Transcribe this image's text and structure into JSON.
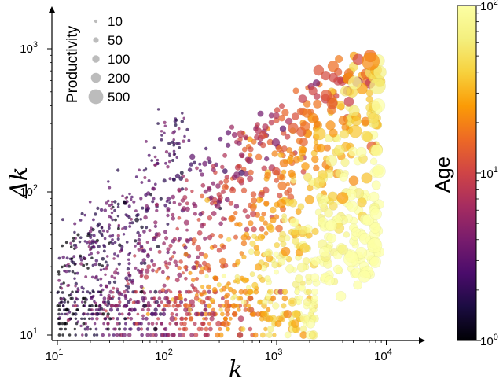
{
  "chart_data": {
    "type": "scatter",
    "xlabel": "k",
    "ylabel": "Δk",
    "xscale": "log",
    "yscale": "log",
    "xlim": [
      9,
      20000
    ],
    "ylim": [
      9,
      1300
    ],
    "x_ticks": [
      {
        "value": 10,
        "base": "10",
        "exp": "1"
      },
      {
        "value": 100,
        "base": "10",
        "exp": "2"
      },
      {
        "value": 1000,
        "base": "10",
        "exp": "3"
      },
      {
        "value": 10000,
        "base": "10",
        "exp": "4"
      }
    ],
    "y_ticks": [
      {
        "value": 10,
        "base": "10",
        "exp": "1"
      },
      {
        "value": 100,
        "base": "10",
        "exp": "2"
      },
      {
        "value": 1000,
        "base": "10",
        "exp": "3"
      }
    ],
    "size_legend": {
      "title": "Productivity",
      "placement": "top-left",
      "entries": [
        {
          "label": "10",
          "value": 10
        },
        {
          "label": "50",
          "value": 50
        },
        {
          "label": "100",
          "value": 100
        },
        {
          "label": "200",
          "value": 200
        },
        {
          "label": "500",
          "value": 500
        }
      ]
    },
    "colorbar": {
      "label": "Age",
      "scale": "log",
      "range": [
        1,
        100
      ],
      "colormap": "inferno",
      "ticks": [
        {
          "value": 1,
          "base": "10",
          "exp": "0"
        },
        {
          "value": 10,
          "base": "10",
          "exp": "1"
        },
        {
          "value": 100,
          "base": "10",
          "exp": "2"
        }
      ]
    },
    "n_points_approx": 1500,
    "points": [
      {
        "x": 10,
        "y": 10,
        "age": 1.5,
        "productivity": 8
      },
      {
        "x": 20,
        "y": 12,
        "age": 3,
        "productivity": 15
      },
      {
        "x": 50,
        "y": 15,
        "age": 6,
        "productivity": 25
      },
      {
        "x": 100,
        "y": 12,
        "age": 8,
        "productivity": 30
      },
      {
        "x": 300,
        "y": 15,
        "age": 12,
        "productivity": 40
      },
      {
        "x": 1000,
        "y": 20,
        "age": 25,
        "productivity": 80
      },
      {
        "x": 2000,
        "y": 40,
        "age": 40,
        "productivity": 150
      },
      {
        "x": 30,
        "y": 100,
        "age": 1.5,
        "productivity": 12
      },
      {
        "x": 150,
        "y": 300,
        "age": 3,
        "productivity": 40
      },
      {
        "x": 500,
        "y": 300,
        "age": 8,
        "productivity": 120
      },
      {
        "x": 1500,
        "y": 400,
        "age": 12,
        "productivity": 300
      },
      {
        "x": 4000,
        "y": 700,
        "age": 30,
        "productivity": 500
      },
      {
        "x": 5000,
        "y": 500,
        "age": 35,
        "productivity": 400
      },
      {
        "x": 9000,
        "y": 400,
        "age": 80,
        "productivity": 250
      },
      {
        "x": 6000,
        "y": 200,
        "age": 60,
        "productivity": 200
      }
    ]
  }
}
